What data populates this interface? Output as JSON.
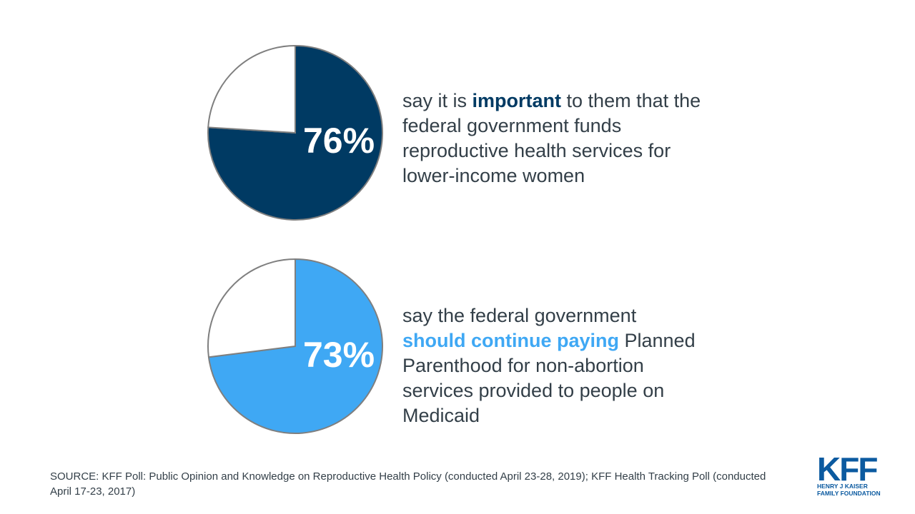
{
  "chart_data": [
    {
      "type": "pie",
      "slices": [
        {
          "label": "76%",
          "value": 76,
          "color": "#003a63"
        },
        {
          "label": "",
          "value": 24,
          "color": "#ffffff"
        }
      ],
      "statement": {
        "pre": "say it is ",
        "highlight": "important",
        "post": " to them that the federal government funds reproductive health services for lower-income women",
        "highlight_color": "#003a63"
      }
    },
    {
      "type": "pie",
      "slices": [
        {
          "label": "73%",
          "value": 73,
          "color": "#3fa8f4"
        },
        {
          "label": "",
          "value": 27,
          "color": "#ffffff"
        }
      ],
      "statement": {
        "pre": "say the federal government ",
        "highlight": "should continue paying",
        "post": " Planned Parenthood for non-abortion services provided to people on Medicaid",
        "highlight_color": "#3fa8f4"
      }
    }
  ],
  "source": "SOURCE: KFF Poll: Public Opinion and Knowledge on Reproductive Health Policy (conducted April 23-28, 2019); KFF Health Tracking Poll (conducted April 17-23, 2017)",
  "logo": {
    "mark": "KFF",
    "line1": "HENRY J KAISER",
    "line2": "FAMILY FOUNDATION",
    "color": "#0b5aa0"
  }
}
